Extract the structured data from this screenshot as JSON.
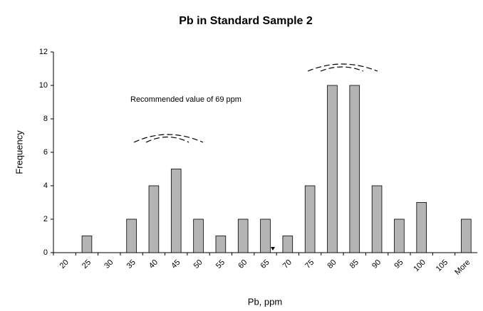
{
  "chart_data": {
    "type": "bar",
    "title": "Pb in Standard Sample 2",
    "x_label": "Pb, ppm",
    "y_label": "Frequency",
    "annotation": "Recommended value of 69 ppm",
    "categories": [
      "20",
      "25",
      "30",
      "35",
      "40",
      "45",
      "50",
      "55",
      "60",
      "65",
      "70",
      "75",
      "80",
      "85",
      "90",
      "95",
      "100",
      "105",
      "More"
    ],
    "values": [
      0,
      1,
      0,
      2,
      4,
      5,
      2,
      1,
      2,
      2,
      1,
      4,
      10,
      10,
      4,
      2,
      3,
      0,
      2
    ],
    "color": "#b4b4b4",
    "ylim": [
      0,
      12
    ],
    "yticks": [
      0,
      2,
      4,
      6,
      8,
      10,
      12
    ],
    "grid": false
  }
}
